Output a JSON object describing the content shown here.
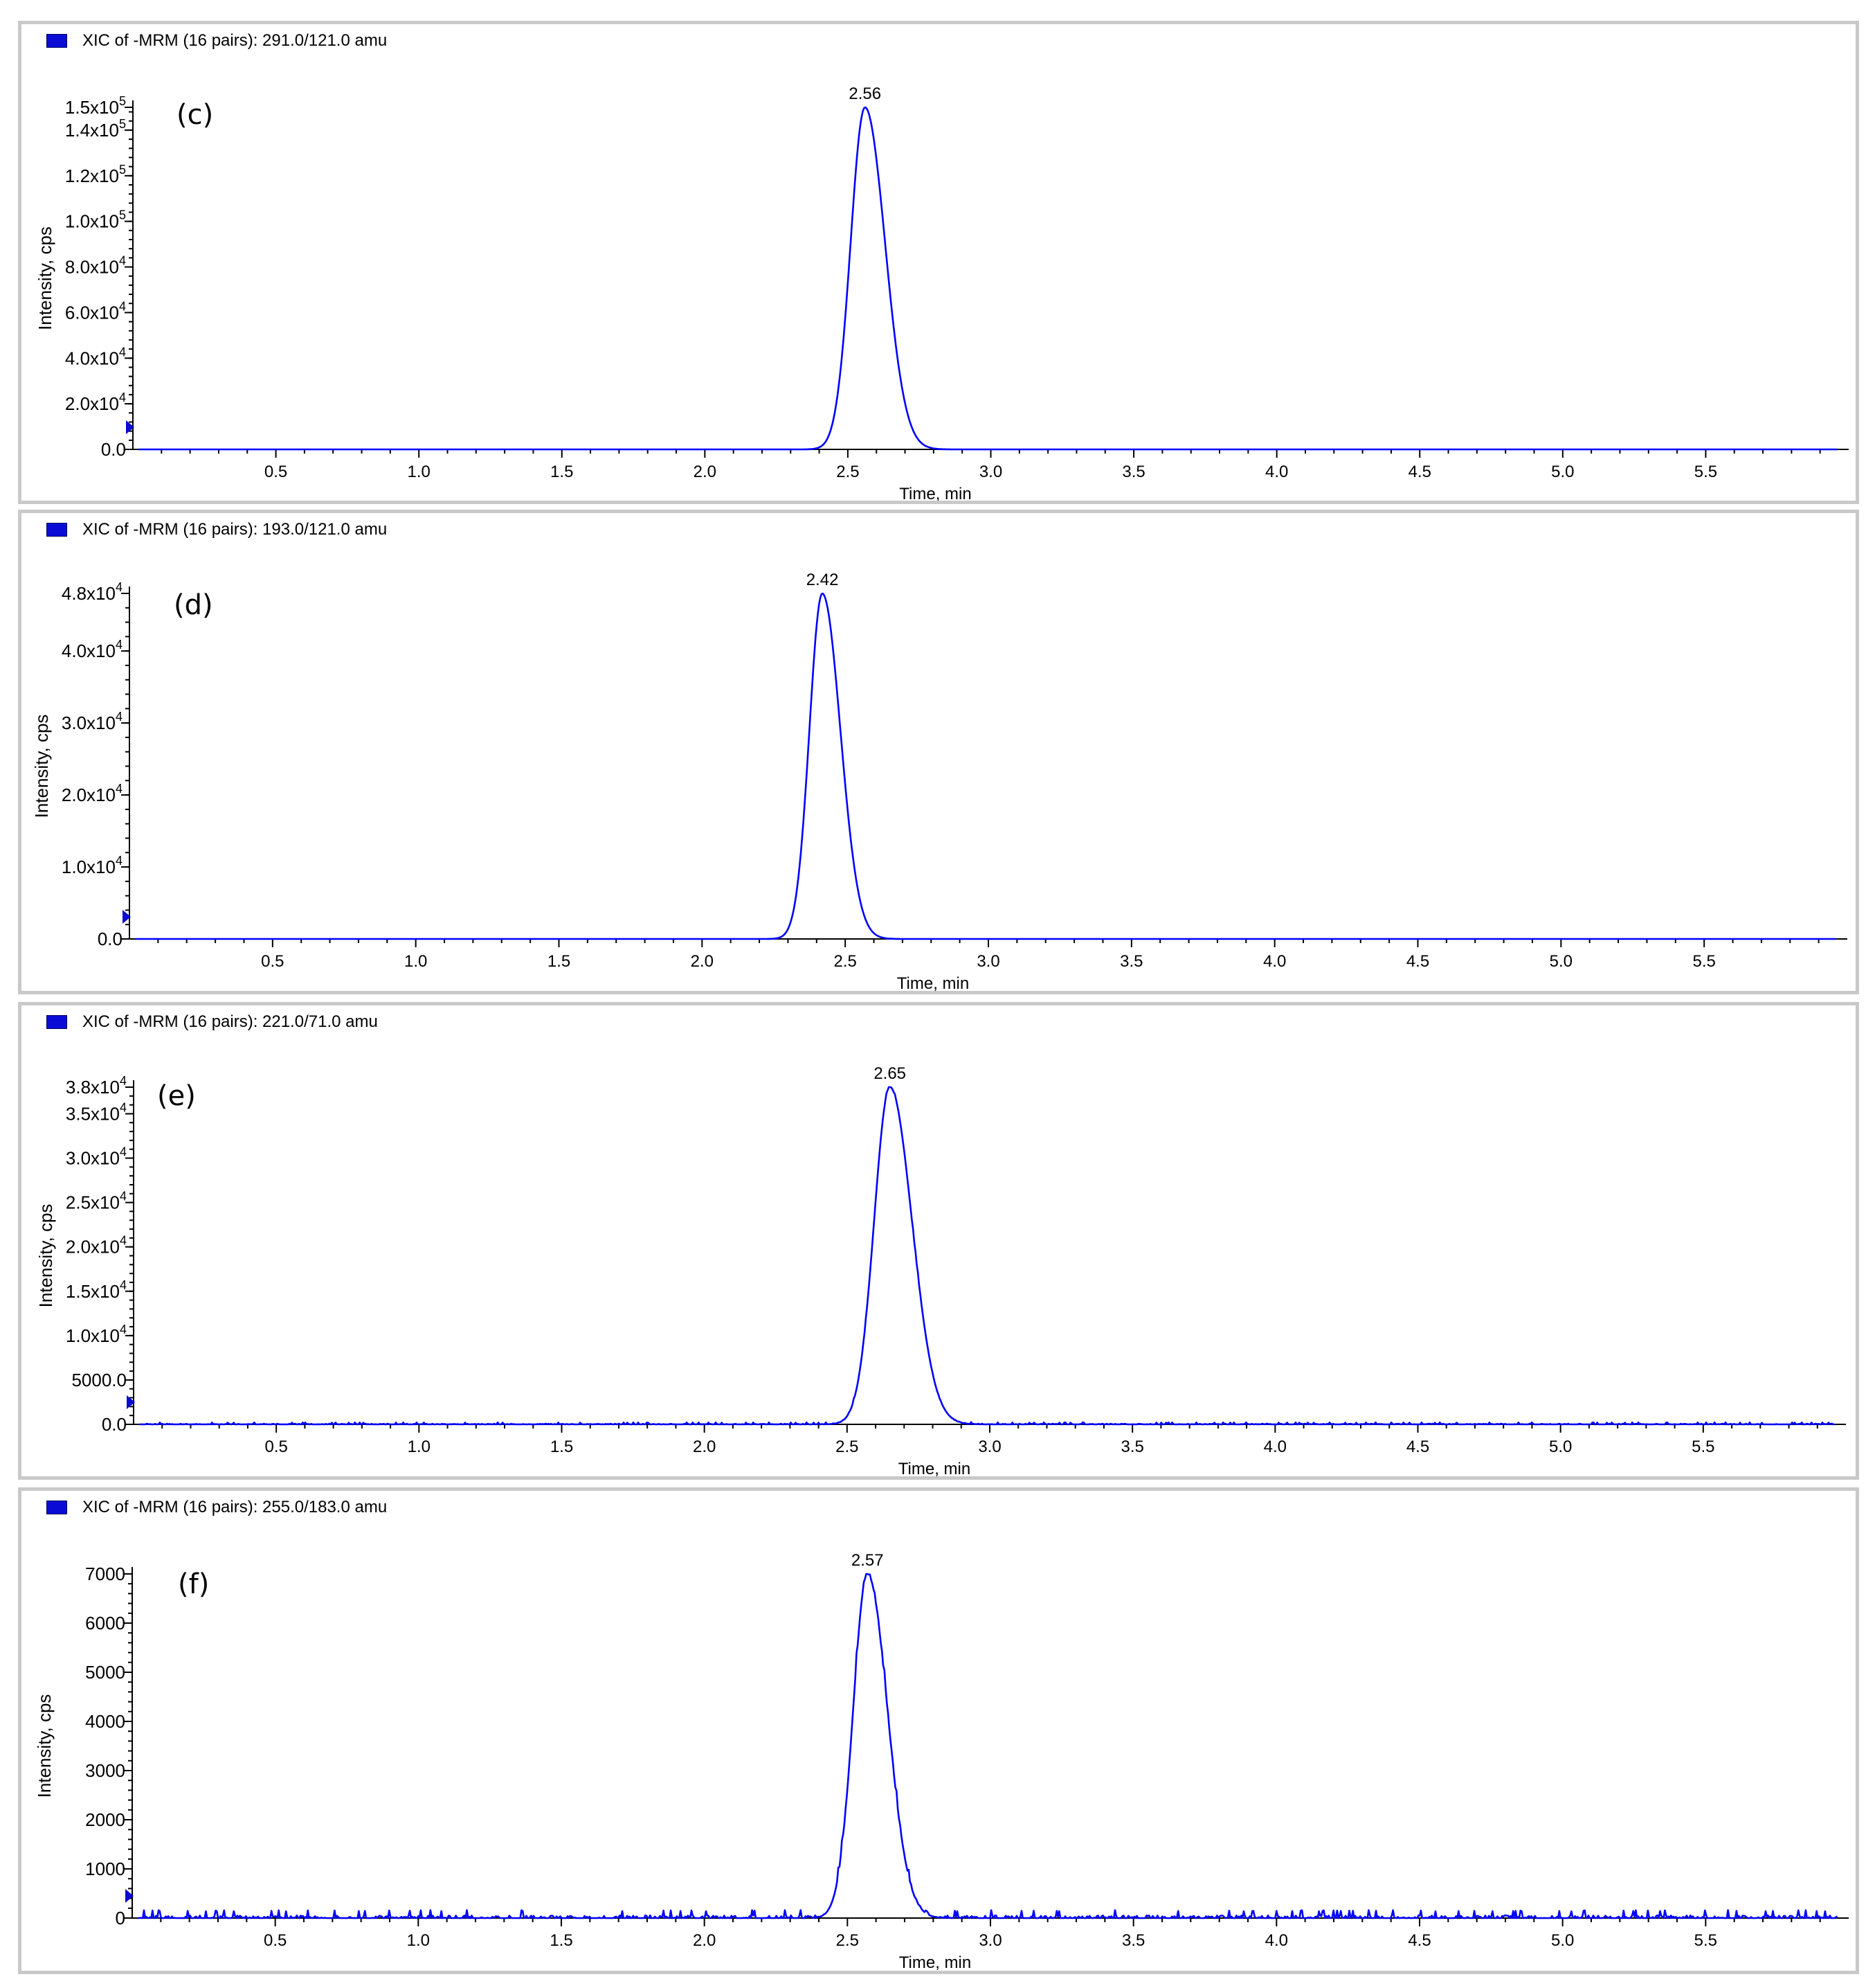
{
  "chart_data": [
    {
      "type": "line",
      "panel_label": "(c)",
      "title": "XIC of -MRM (16 pairs): 291.0/121.0 amu",
      "xlabel": "Time, min",
      "ylabel": "Intensity, cps",
      "xlim": [
        0,
        6.0
      ],
      "ylim": [
        0,
        150000
      ],
      "x_ticks": [
        "0.5",
        "1.0",
        "1.5",
        "2.0",
        "2.5",
        "3.0",
        "3.5",
        "4.0",
        "4.5",
        "5.0",
        "5.5"
      ],
      "y_tick_values": [
        0,
        20000,
        40000,
        60000,
        80000,
        100000,
        120000,
        140000,
        150000
      ],
      "y_tick_mantissa": [
        "0.0",
        "2.0x10",
        "4.0x10",
        "6.0x10",
        "8.0x10",
        "1.0x10",
        "1.2x10",
        "1.4x10",
        "1.5x10"
      ],
      "y_tick_exponent": [
        "",
        "4",
        "4",
        "4",
        "4",
        "5",
        "5",
        "5",
        "5"
      ],
      "peak": {
        "x": 2.56,
        "y": 150000,
        "width": 0.05,
        "tail": 1.4,
        "label": "2.56"
      },
      "noise": 0,
      "series_color": "#0000ff",
      "legend_color": "#0b0bd6"
    },
    {
      "type": "line",
      "panel_label": "(d)",
      "title": "XIC of -MRM (16 pairs): 193.0/121.0 amu",
      "xlabel": "Time, min",
      "ylabel": "Intensity, cps",
      "xlim": [
        0,
        6.0
      ],
      "ylim": [
        0,
        48000
      ],
      "x_ticks": [
        "0.5",
        "1.0",
        "1.5",
        "2.0",
        "2.5",
        "3.0",
        "3.5",
        "4.0",
        "4.5",
        "5.0",
        "5.5"
      ],
      "y_tick_values": [
        0,
        10000,
        20000,
        30000,
        40000,
        48000
      ],
      "y_tick_mantissa": [
        "0.0",
        "1.0x10",
        "2.0x10",
        "3.0x10",
        "4.0x10",
        "4.8x10"
      ],
      "y_tick_exponent": [
        "",
        "4",
        "4",
        "4",
        "4",
        "4"
      ],
      "peak": {
        "x": 2.42,
        "y": 48000,
        "width": 0.045,
        "tail": 1.4,
        "label": "2.42"
      },
      "noise": 0,
      "series_color": "#0000ff",
      "legend_color": "#0b0bd6"
    },
    {
      "type": "line",
      "panel_label": "(e)",
      "title": "XIC of -MRM (16 pairs): 221.0/71.0 amu",
      "xlabel": "Time, min",
      "ylabel": "Intensity, cps",
      "xlim": [
        0,
        6.0
      ],
      "ylim": [
        0,
        38000
      ],
      "x_ticks": [
        "0.5",
        "1.0",
        "1.5",
        "2.0",
        "2.5",
        "3.0",
        "3.5",
        "4.0",
        "4.5",
        "5.0",
        "5.5"
      ],
      "y_tick_values": [
        0,
        5000,
        10000,
        15000,
        20000,
        25000,
        30000,
        35000,
        38000
      ],
      "y_tick_mantissa": [
        "0.0",
        "5000.0",
        "1.0x10",
        "1.5x10",
        "2.0x10",
        "2.5x10",
        "3.0x10",
        "3.5x10",
        "3.8x10"
      ],
      "y_tick_exponent": [
        "",
        "",
        "4",
        "4",
        "4",
        "4",
        "4",
        "4",
        "4"
      ],
      "peak": {
        "x": 2.65,
        "y": 38000,
        "width": 0.055,
        "tail": 1.4,
        "label": "2.65"
      },
      "noise": 120,
      "series_color": "#0000ff",
      "legend_color": "#0b0bd6"
    },
    {
      "type": "line",
      "panel_label": "(f)",
      "title": "XIC of -MRM (16 pairs): 255.0/183.0 amu",
      "xlabel": "Time, min",
      "ylabel": "Intensity, cps",
      "xlim": [
        0,
        6.0
      ],
      "ylim": [
        0,
        7000
      ],
      "x_ticks": [
        "0.5",
        "1.0",
        "1.5",
        "2.0",
        "2.5",
        "3.0",
        "3.5",
        "4.0",
        "4.5",
        "5.0",
        "5.5"
      ],
      "y_tick_values": [
        0,
        1000,
        2000,
        3000,
        4000,
        5000,
        6000,
        7000
      ],
      "y_tick_mantissa": [
        "0",
        "1000",
        "2000",
        "3000",
        "4000",
        "5000",
        "6000",
        "7000"
      ],
      "y_tick_exponent": [
        "",
        "",
        "",
        "",
        "",
        "",
        "",
        ""
      ],
      "peak": {
        "x": 2.57,
        "y": 7000,
        "width": 0.05,
        "tail": 1.4,
        "label": "2.57"
      },
      "noise": 90,
      "series_color": "#0000ff",
      "legend_color": "#0b0bd6"
    }
  ]
}
